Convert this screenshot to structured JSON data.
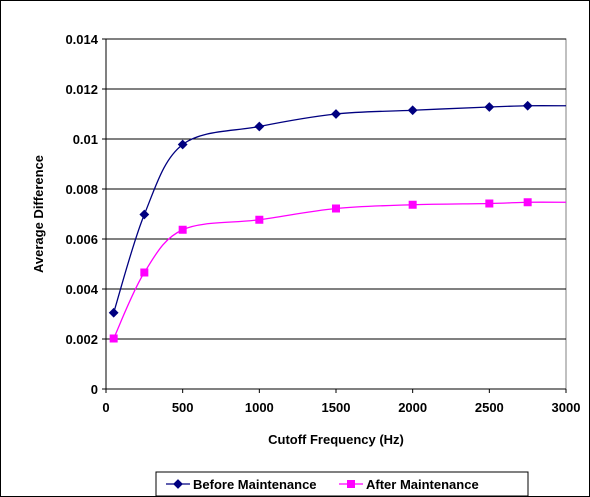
{
  "chart_data": {
    "type": "line",
    "title": "",
    "xlabel": "Cutoff Frequency (Hz)",
    "ylabel": "Average Difference",
    "xlim": [
      0,
      3000
    ],
    "ylim": [
      0,
      0.014
    ],
    "x_ticks": [
      "0",
      "500",
      "1000",
      "1500",
      "2000",
      "2500",
      "3000"
    ],
    "y_ticks": [
      "0",
      "0.002",
      "0.004",
      "0.006",
      "0.008",
      "0.01",
      "0.012",
      "0.014"
    ],
    "grid": "horizontal",
    "legend_position": "bottom",
    "smooth": true,
    "series": [
      {
        "name": "Before Maintenance",
        "color": "#000080",
        "marker": "diamond",
        "x": [
          50,
          250,
          500,
          1000,
          1500,
          2000,
          2500,
          2750
        ],
        "y": [
          0.00305,
          0.00698,
          0.00978,
          0.0105,
          0.011,
          0.01115,
          0.01128,
          0.01133
        ],
        "extends_to_x": 3000
      },
      {
        "name": "After Maintenance",
        "color": "#ff00ff",
        "marker": "square",
        "x": [
          50,
          250,
          500,
          1000,
          1500,
          2000,
          2500,
          2750
        ],
        "y": [
          0.00202,
          0.00466,
          0.00637,
          0.00677,
          0.00722,
          0.00737,
          0.00742,
          0.00747
        ],
        "extends_to_x": 3000
      }
    ]
  }
}
